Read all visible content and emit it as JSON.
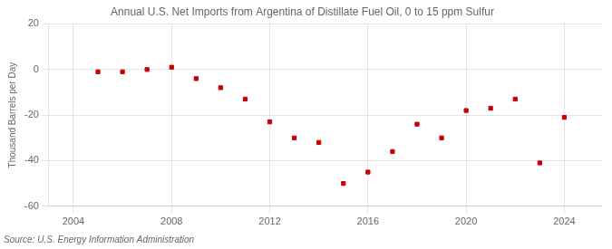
{
  "chart_data": {
    "type": "scatter",
    "title": "Annual U.S. Net Imports from Argentina of Distillate Fuel Oil, 0 to 15 ppm Sulfur",
    "ylabel": "Thousand Barrels per Day",
    "source": "Source: U.S. Energy Information Administration",
    "x": [
      2005,
      2006,
      2007,
      2008,
      2009,
      2010,
      2011,
      2012,
      2013,
      2014,
      2015,
      2016,
      2017,
      2018,
      2019,
      2020,
      2021,
      2022,
      2023,
      2024
    ],
    "values": [
      -1,
      -1,
      0,
      1,
      -4,
      -8,
      -13,
      -23,
      -30,
      -32,
      -50,
      -45,
      -36,
      -24,
      -30,
      -18,
      -17,
      -13,
      -41,
      -21
    ],
    "color": "#cc0000",
    "marker": "square",
    "xlim": [
      2003.0,
      2025.5
    ],
    "xticks": [
      2004,
      2008,
      2012,
      2016,
      2020,
      2024
    ],
    "ylim": [
      -60,
      20
    ],
    "yticks": [
      -60,
      -40,
      -20,
      0,
      20
    ],
    "grid": true
  }
}
